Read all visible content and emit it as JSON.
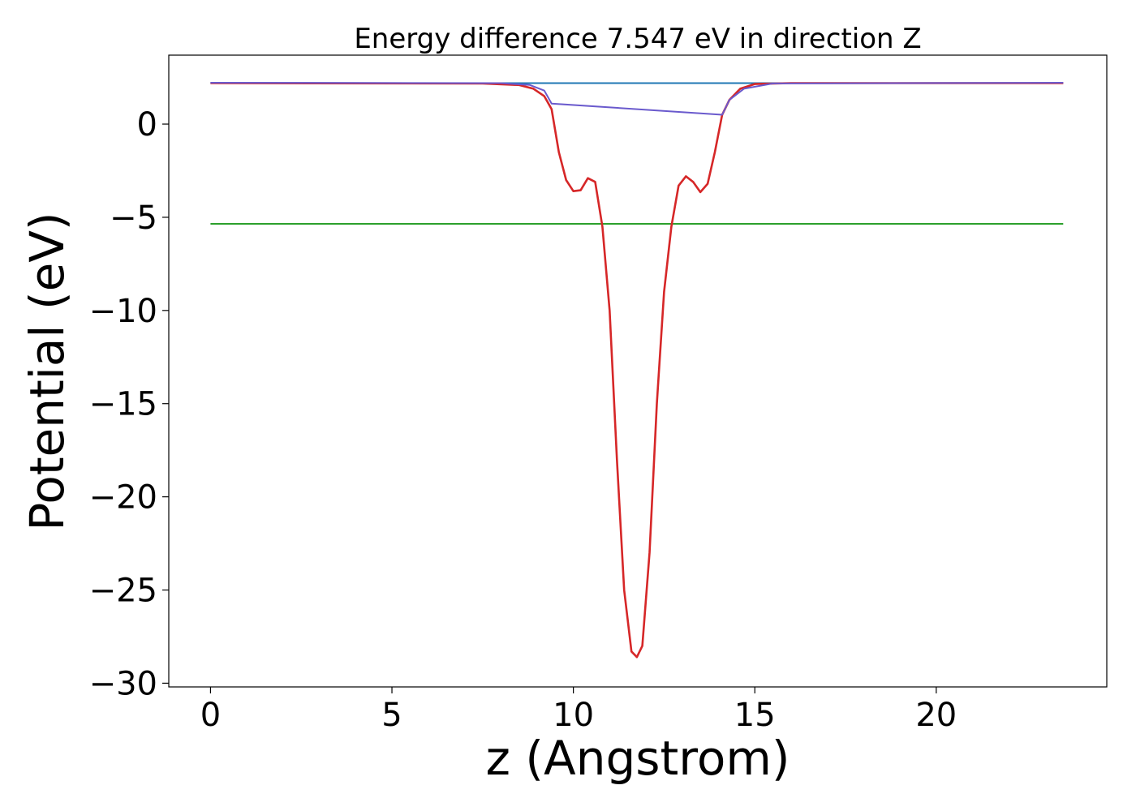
{
  "chart_data": {
    "type": "line",
    "title": "Energy difference 7.547 eV in direction Z",
    "xlabel": "z (Angstrom)",
    "ylabel": "Potential (eV)",
    "xlim": [
      -1.15,
      24.7
    ],
    "ylim": [
      -30.2,
      3.7
    ],
    "xticks": [
      0,
      5,
      10,
      15,
      20
    ],
    "yticks": [
      0,
      -5,
      -10,
      -15,
      -20,
      -25,
      -30
    ],
    "grid": false,
    "legend": "none",
    "series": [
      {
        "color": "#1f77b4",
        "x": [
          0,
          23.5
        ],
        "y": [
          2.2,
          2.2
        ]
      },
      {
        "color": "#2ca02c",
        "x": [
          0,
          23.5
        ],
        "y": [
          -5.35,
          -5.35
        ]
      },
      {
        "color": "#d62728",
        "x": [
          0,
          7.5,
          8.5,
          8.9,
          9.2,
          9.4,
          9.6,
          9.8,
          10.0,
          10.2,
          10.4,
          10.6,
          10.8,
          11.0,
          11.2,
          11.4,
          11.6,
          11.75,
          11.9,
          12.1,
          12.3,
          12.5,
          12.7,
          12.9,
          13.1,
          13.3,
          13.5,
          13.7,
          13.9,
          14.1,
          14.3,
          14.6,
          15.0,
          16.0,
          23.5
        ],
        "y": [
          2.2,
          2.18,
          2.1,
          1.9,
          1.5,
          0.8,
          -1.5,
          -3.0,
          -3.6,
          -3.55,
          -2.9,
          -3.1,
          -5.5,
          -10.0,
          -18.0,
          -25.0,
          -28.3,
          -28.6,
          -28.0,
          -23.0,
          -15.0,
          -9.0,
          -5.5,
          -3.3,
          -2.8,
          -3.1,
          -3.65,
          -3.2,
          -1.5,
          0.5,
          1.3,
          1.9,
          2.15,
          2.2,
          2.2
        ]
      },
      {
        "color": "#6a5acd",
        "x": [
          0,
          8.0,
          8.8,
          9.2,
          9.4,
          14.1,
          14.3,
          14.7,
          15.5,
          23.5
        ],
        "y": [
          2.22,
          2.2,
          2.1,
          1.8,
          1.1,
          0.5,
          1.3,
          1.9,
          2.18,
          2.22
        ]
      }
    ]
  }
}
